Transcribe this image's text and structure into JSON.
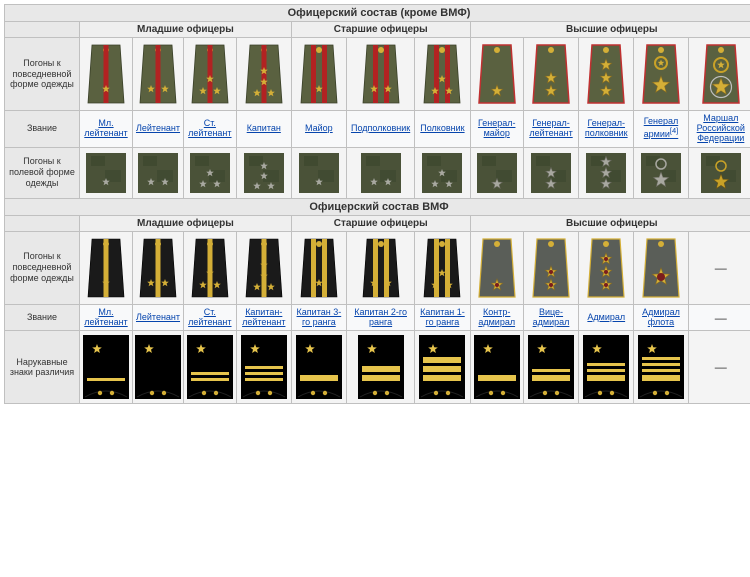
{
  "section1": {
    "title": "Офицерский состав (кроме ВМФ)",
    "groups": [
      "Младшие офицеры",
      "Старшие офицеры",
      "Высшие офицеры"
    ],
    "group_spans": [
      4,
      3,
      5
    ],
    "row1_label": "Погоны к повседневной форме одежды",
    "row2_label": "Звание",
    "row3_label": "Погоны к полевой форме одежды",
    "colors": {
      "khaki": "#5a6140",
      "camo1": "#4a5238",
      "camo2": "#3c472e",
      "stripe_red": "#b22222",
      "stripe_border": "#c84040",
      "star_gold": "#d4af37",
      "star_grey": "#a8a8a0",
      "pipe_red": "#c03030",
      "wreath_gold": "#c9a227"
    },
    "ranks": [
      {
        "name": "Мл. лейтенант",
        "stripes": 1,
        "small_stars": 1,
        "layout": "v1"
      },
      {
        "name": "Лейтенант",
        "stripes": 1,
        "small_stars": 2,
        "layout": "h2"
      },
      {
        "name": "Ст. лейтенант",
        "stripes": 1,
        "small_stars": 3,
        "layout": "tri"
      },
      {
        "name": "Капитан",
        "stripes": 1,
        "small_stars": 4,
        "layout": "quad"
      },
      {
        "name": "Майор",
        "stripes": 2,
        "small_stars": 1,
        "layout": "v1"
      },
      {
        "name": "Подполковник",
        "stripes": 2,
        "small_stars": 2,
        "layout": "h2"
      },
      {
        "name": "Полковник",
        "stripes": 2,
        "small_stars": 3,
        "layout": "tri"
      },
      {
        "name": "Генерал-майор",
        "stripes": 0,
        "big_stars": 1,
        "senior": true
      },
      {
        "name": "Генерал-лейтенант",
        "stripes": 0,
        "big_stars": 2,
        "senior": true
      },
      {
        "name": "Генерал-полковник",
        "stripes": 0,
        "big_stars": 3,
        "senior": true
      },
      {
        "name": "Генерал армии",
        "sup": "[4]",
        "stripes": 0,
        "big_stars": 1,
        "wreath": true,
        "senior": true,
        "huge": true
      },
      {
        "name": "Маршал Российской Федерации",
        "stripes": 0,
        "marshal": true,
        "senior": true
      }
    ]
  },
  "section2": {
    "title": "Офицерский состав ВМФ",
    "groups": [
      "Младшие офицеры",
      "Старшие офицеры",
      "Высшие офицеры"
    ],
    "group_spans": [
      4,
      3,
      5
    ],
    "row1_label": "Погоны к повседневной форме одежды",
    "row2_label": "Звание",
    "row3_label": "Нарукавные знаки различия",
    "colors": {
      "navy_black": "#1a1a1a",
      "navy_grey": "#5a5e58",
      "stripe_gold": "#d4af37",
      "star_gold": "#d4af37",
      "sleeve_black": "#000000",
      "sleeve_gold": "#e6c44c",
      "button_gold": "#d4af37"
    },
    "ranks": [
      {
        "name": "Мл. лейтенант",
        "stripes": 1,
        "small_stars": 1,
        "layout": "v1",
        "sleeve_mid": 1
      },
      {
        "name": "Лейтенант",
        "stripes": 1,
        "small_stars": 2,
        "layout": "h2",
        "sleeve_mid": 0,
        "sleeve_star_only": true
      },
      {
        "name": "Ст. лейтенант",
        "stripes": 1,
        "small_stars": 3,
        "layout": "tri",
        "sleeve_mid": 2
      },
      {
        "name": "Капитан-лейтенант",
        "stripes": 1,
        "small_stars": 4,
        "layout": "quad",
        "sleeve_mid": 3
      },
      {
        "name": "Капитан 3-го ранга",
        "stripes": 2,
        "small_stars": 1,
        "layout": "v1",
        "sleeve_wide": 1
      },
      {
        "name": "Капитан 2-го ранга",
        "stripes": 2,
        "small_stars": 2,
        "layout": "h2",
        "sleeve_wide": 2
      },
      {
        "name": "Капитан 1-го ранга",
        "stripes": 2,
        "small_stars": 3,
        "layout": "tri",
        "sleeve_wide": 3
      },
      {
        "name": "Контр-адмирал",
        "big_stars": 1,
        "senior": true,
        "sleeve_wide": 1,
        "sleeve_mid_above": 0
      },
      {
        "name": "Вице-адмирал",
        "big_stars": 2,
        "senior": true,
        "sleeve_wide": 1,
        "sleeve_mid_above": 1
      },
      {
        "name": "Адмирал",
        "big_stars": 3,
        "senior": true,
        "sleeve_wide": 1,
        "sleeve_mid_above": 2
      },
      {
        "name": "Адмирал флота",
        "big_stars": 1,
        "senior": true,
        "huge": true,
        "sleeve_wide": 1,
        "sleeve_mid_above": 3
      },
      {
        "name": "—",
        "empty": true
      }
    ]
  }
}
